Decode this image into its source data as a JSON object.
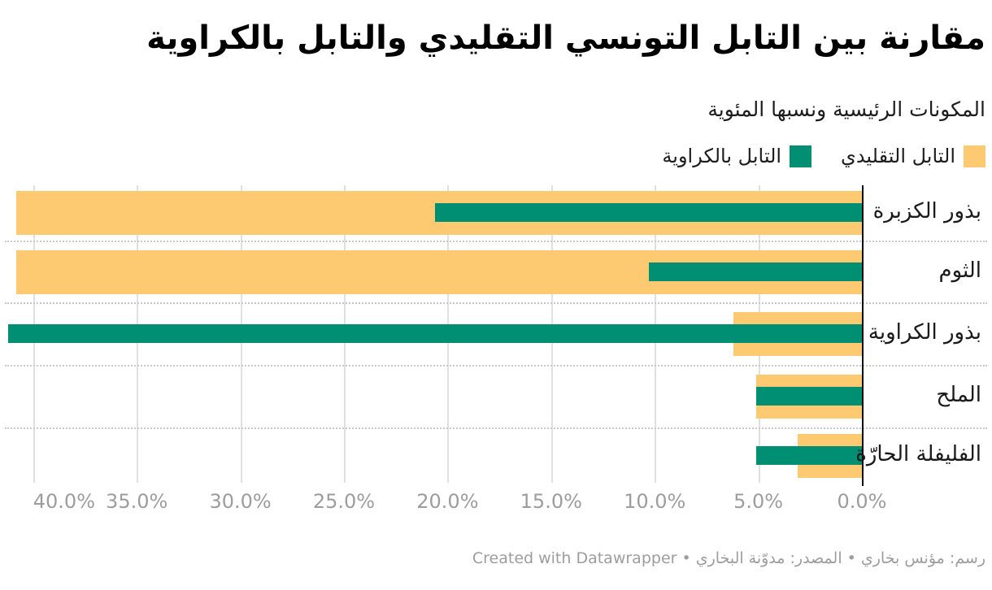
{
  "header": {
    "title": "مقارنة بين التابل التونسي التقليدي والتابل بالكراوية",
    "subtitle": "المكونات الرئيسية ونسبها المئوية"
  },
  "footer": {
    "credit": "رسم: مؤنس بخاري • المصدر: مدوّنة البخاري • Created with Datawrapper"
  },
  "colors": {
    "traditional": "#fdca72",
    "caraway": "#008f72",
    "axis": "#0b0b0b",
    "gridline": "#e0e0e0",
    "tick_label": "#9d9d9d"
  },
  "chart_data": {
    "type": "bar",
    "orientation": "horizontal-rtl",
    "title": "مقارنة بين التابل التونسي التقليدي والتابل بالكراوية",
    "subtitle": "المكونات الرئيسية ونسبها المئوية",
    "categories": [
      "بذور الكزبرة",
      "الثوم",
      "بذور الكراوية",
      "الملح",
      "الفليفلة الحارّة"
    ],
    "series": [
      {
        "name": "التابل التقليدي",
        "color": "#fdca72",
        "values": [
          40.8,
          40.8,
          6.2,
          5.1,
          3.1
        ]
      },
      {
        "name": "التابل بالكراوية",
        "color": "#008f72",
        "values": [
          20.6,
          10.3,
          41.2,
          5.1,
          5.1
        ]
      }
    ],
    "value_unit": "%",
    "x_ticks": [
      "40.0%",
      "35.0%",
      "30.0%",
      "25.0%",
      "20.0%",
      "15.0%",
      "10.0%",
      "5.0%",
      "0.0%"
    ],
    "xlim": [
      0,
      41.6
    ],
    "grid": true,
    "legend_position": "top-right"
  }
}
